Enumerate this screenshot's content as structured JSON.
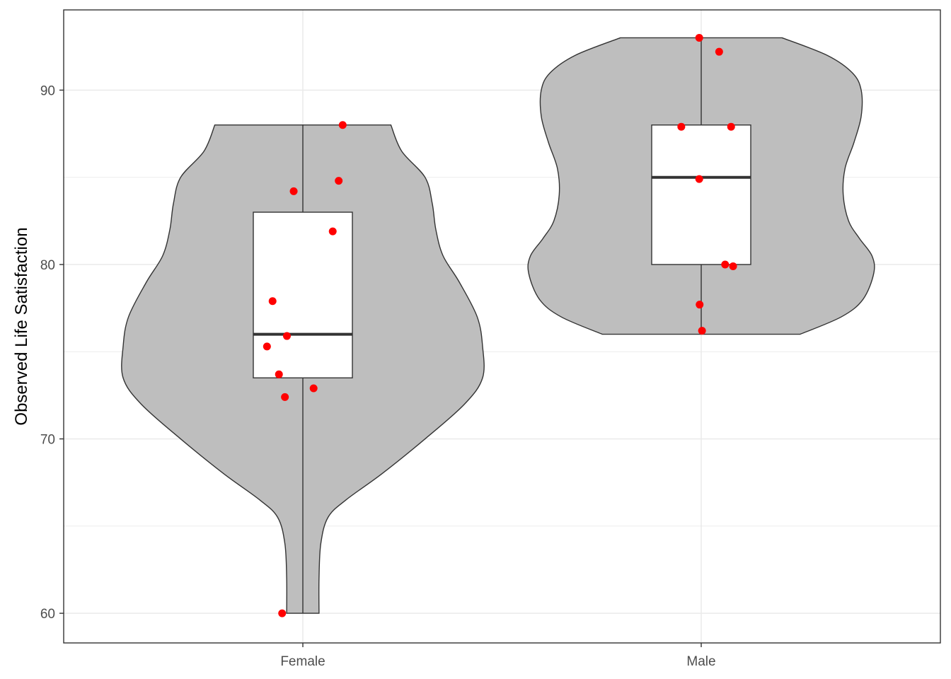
{
  "chart_data": {
    "type": "violin",
    "overlay": [
      "boxplot",
      "jittered-points"
    ],
    "title": "",
    "xlabel": "",
    "ylabel": "Observed Life Satisfaction",
    "categories": [
      "Female",
      "Male"
    ],
    "ylim": [
      58.3,
      94.6
    ],
    "yticks": [
      60,
      70,
      80,
      90
    ],
    "grid": true,
    "legend": "none",
    "colors": {
      "violin_fill": "#bebebe",
      "outline": "#333333",
      "box_fill": "#ffffff",
      "points": "#ff0000",
      "grid": "#ebebeb",
      "panel_border": "#333333"
    },
    "groups": [
      {
        "name": "Female",
        "box": {
          "min": 60,
          "q1": 73.5,
          "median": 76,
          "q3": 83,
          "max": 88
        },
        "violin_range": [
          60,
          88
        ],
        "violin_density": [
          [
            60,
            0.09
          ],
          [
            62,
            0.09
          ],
          [
            64,
            0.1
          ],
          [
            65.5,
            0.14
          ],
          [
            66.5,
            0.24
          ],
          [
            68,
            0.44
          ],
          [
            70,
            0.68
          ],
          [
            72,
            0.9
          ],
          [
            73.5,
            1.0
          ],
          [
            75.3,
            1.0
          ],
          [
            77,
            0.97
          ],
          [
            79,
            0.87
          ],
          [
            80.5,
            0.78
          ],
          [
            82,
            0.74
          ],
          [
            83.5,
            0.72
          ],
          [
            85,
            0.68
          ],
          [
            86.5,
            0.55
          ],
          [
            88,
            0.49
          ]
        ],
        "points": [
          {
            "jitter": 0.1,
            "y": 88
          },
          {
            "jitter": 0.09,
            "y": 84.8
          },
          {
            "jitter": -0.023,
            "y": 84.2
          },
          {
            "jitter": 0.075,
            "y": 81.9
          },
          {
            "jitter": -0.076,
            "y": 77.9
          },
          {
            "jitter": -0.04,
            "y": 75.9
          },
          {
            "jitter": -0.09,
            "y": 75.3
          },
          {
            "jitter": -0.06,
            "y": 73.7
          },
          {
            "jitter": 0.027,
            "y": 72.9
          },
          {
            "jitter": -0.045,
            "y": 72.4
          },
          {
            "jitter": -0.052,
            "y": 60
          }
        ]
      },
      {
        "name": "Male",
        "box": {
          "min": 76,
          "q1": 80,
          "median": 85,
          "q3": 88,
          "max": 93
        },
        "violin_range": [
          76,
          93
        ],
        "violin_density": [
          [
            76,
            0.55
          ],
          [
            77,
            0.78
          ],
          [
            78,
            0.9
          ],
          [
            79.5,
            0.96
          ],
          [
            80.5,
            0.95
          ],
          [
            81.5,
            0.88
          ],
          [
            82.5,
            0.82
          ],
          [
            84,
            0.79
          ],
          [
            85.5,
            0.8
          ],
          [
            87,
            0.85
          ],
          [
            88.5,
            0.89
          ],
          [
            90,
            0.89
          ],
          [
            91,
            0.84
          ],
          [
            92,
            0.7
          ],
          [
            93,
            0.45
          ]
        ],
        "points": [
          {
            "jitter": -0.005,
            "y": 93
          },
          {
            "jitter": 0.045,
            "y": 92.2
          },
          {
            "jitter": -0.05,
            "y": 87.9
          },
          {
            "jitter": 0.075,
            "y": 87.9
          },
          {
            "jitter": -0.005,
            "y": 84.9
          },
          {
            "jitter": 0.06,
            "y": 80
          },
          {
            "jitter": 0.08,
            "y": 79.9
          },
          {
            "jitter": -0.004,
            "y": 77.7
          },
          {
            "jitter": 0.002,
            "y": 76.2
          }
        ]
      }
    ]
  }
}
